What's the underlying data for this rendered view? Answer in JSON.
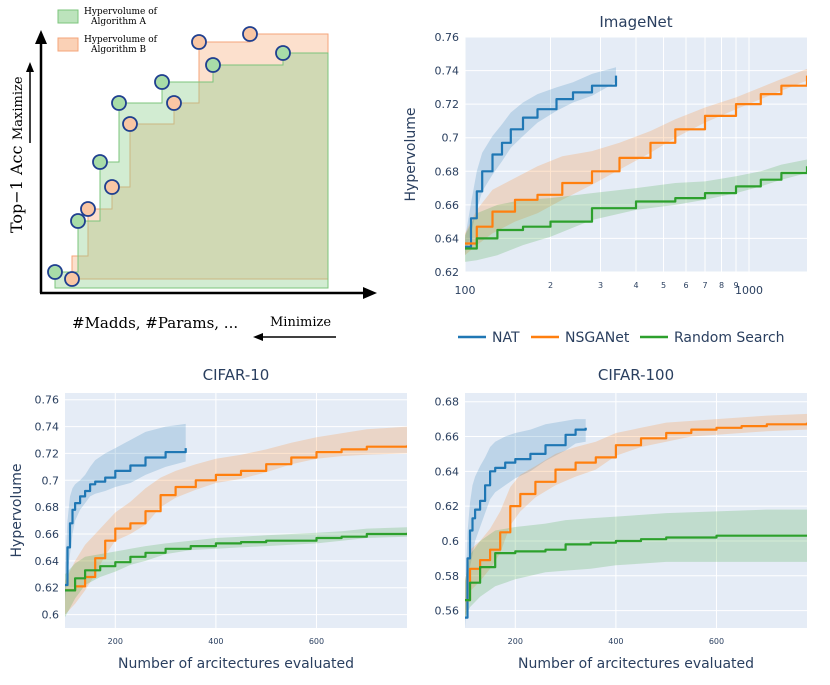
{
  "colors": {
    "nat": "#1f77b4",
    "nsga": "#ff7f0e",
    "random": "#2ca02c",
    "algA": "#8fd08f",
    "algB": "#f9c6a4",
    "grid": "#ffffff",
    "plotbg": "#e5ecf6"
  },
  "schematic": {
    "legend_a": [
      "Hypervolume of",
      "Algorithm A"
    ],
    "legend_b": [
      "Hypervolume of",
      "Algorithm B"
    ],
    "ylabel": "Top−1 Acc",
    "yarrow_label": "Maximize",
    "xlabel": "#Madds, #Params, ...",
    "xarrow_label": "Minimize"
  },
  "legend": {
    "items": [
      "NAT",
      "NSGANet",
      "Random Search"
    ]
  },
  "chart_data": [
    {
      "type": "line",
      "id": "imagenet",
      "title": "ImageNet",
      "xscale": "log",
      "xlabel": "",
      "ylabel": "Hypervolume",
      "xlim": [
        100,
        1600
      ],
      "ylim": [
        0.62,
        0.76
      ],
      "xticks": [
        100,
        200,
        300,
        400,
        500,
        600,
        700,
        800,
        900,
        1000
      ],
      "xticklabels": [
        "100",
        "2",
        "3",
        "4",
        "5",
        "6",
        "7",
        "8",
        "9",
        "1000"
      ],
      "yticks": [
        0.62,
        0.64,
        0.66,
        0.68,
        0.7,
        0.72,
        0.74,
        0.76
      ],
      "yticklabels": [
        "0.62",
        "0.64",
        "0.66",
        "0.68",
        "0.7",
        "0.72",
        "0.74",
        "0.76"
      ],
      "series": [
        {
          "name": "NAT",
          "x": [
            100,
            105,
            110,
            115,
            125,
            135,
            145,
            160,
            180,
            210,
            240,
            280,
            340
          ],
          "y": [
            0.635,
            0.652,
            0.668,
            0.68,
            0.69,
            0.697,
            0.705,
            0.712,
            0.717,
            0.723,
            0.727,
            0.731,
            0.737
          ],
          "lo": [
            0.63,
            0.643,
            0.657,
            0.668,
            0.678,
            0.686,
            0.694,
            0.701,
            0.709,
            0.716,
            0.721,
            0.725,
            0.733
          ],
          "hi": [
            0.64,
            0.661,
            0.68,
            0.691,
            0.701,
            0.708,
            0.715,
            0.721,
            0.726,
            0.73,
            0.733,
            0.738,
            0.742
          ]
        },
        {
          "name": "NSGANet",
          "x": [
            100,
            110,
            125,
            150,
            180,
            220,
            280,
            350,
            450,
            550,
            700,
            900,
            1100,
            1300,
            1600
          ],
          "y": [
            0.637,
            0.647,
            0.656,
            0.663,
            0.666,
            0.673,
            0.68,
            0.688,
            0.697,
            0.705,
            0.713,
            0.72,
            0.726,
            0.731,
            0.737
          ],
          "lo": [
            0.63,
            0.636,
            0.643,
            0.65,
            0.655,
            0.663,
            0.672,
            0.681,
            0.691,
            0.7,
            0.709,
            0.717,
            0.723,
            0.728,
            0.734
          ],
          "hi": [
            0.643,
            0.657,
            0.669,
            0.676,
            0.683,
            0.689,
            0.692,
            0.697,
            0.704,
            0.711,
            0.718,
            0.724,
            0.73,
            0.735,
            0.741
          ]
        },
        {
          "name": "Random Search",
          "x": [
            100,
            110,
            130,
            160,
            200,
            280,
            400,
            550,
            700,
            900,
            1100,
            1300,
            1600
          ],
          "y": [
            0.634,
            0.64,
            0.645,
            0.647,
            0.65,
            0.658,
            0.662,
            0.664,
            0.667,
            0.671,
            0.675,
            0.679,
            0.683
          ],
          "lo": [
            0.626,
            0.627,
            0.63,
            0.636,
            0.641,
            0.651,
            0.657,
            0.66,
            0.663,
            0.667,
            0.671,
            0.675,
            0.679
          ],
          "hi": [
            0.642,
            0.655,
            0.66,
            0.663,
            0.664,
            0.667,
            0.67,
            0.673,
            0.674,
            0.677,
            0.68,
            0.684,
            0.687
          ]
        }
      ]
    },
    {
      "type": "line",
      "id": "cifar10",
      "title": "CIFAR-10",
      "xscale": "linear",
      "xlabel": "Number of arcitectures evaluated",
      "ylabel": "Hypervolume",
      "xlim": [
        100,
        780
      ],
      "ylim": [
        0.59,
        0.765
      ],
      "xticks": [
        200,
        400,
        600
      ],
      "xticklabels": [
        "200",
        "400",
        "600"
      ],
      "yticks": [
        0.6,
        0.62,
        0.64,
        0.66,
        0.68,
        0.7,
        0.72,
        0.74,
        0.76
      ],
      "yticklabels": [
        "0.6",
        "0.62",
        "0.64",
        "0.66",
        "0.68",
        "0.7",
        "0.72",
        "0.74",
        "0.76"
      ],
      "series": [
        {
          "name": "NAT",
          "x": [
            100,
            105,
            110,
            115,
            120,
            130,
            140,
            150,
            160,
            180,
            200,
            230,
            260,
            300,
            340
          ],
          "y": [
            0.622,
            0.65,
            0.668,
            0.678,
            0.683,
            0.688,
            0.692,
            0.697,
            0.699,
            0.702,
            0.707,
            0.711,
            0.717,
            0.721,
            0.724
          ],
          "lo": [
            0.61,
            0.63,
            0.645,
            0.66,
            0.67,
            0.678,
            0.683,
            0.688,
            0.69,
            0.692,
            0.695,
            0.698,
            0.704,
            0.71,
            0.714
          ],
          "hi": [
            0.635,
            0.67,
            0.688,
            0.694,
            0.697,
            0.7,
            0.704,
            0.71,
            0.715,
            0.72,
            0.724,
            0.73,
            0.736,
            0.74,
            0.742
          ]
        },
        {
          "name": "NSGANet",
          "x": [
            100,
            120,
            140,
            160,
            180,
            200,
            230,
            260,
            290,
            320,
            360,
            400,
            450,
            500,
            550,
            600,
            650,
            700,
            780
          ],
          "y": [
            0.618,
            0.621,
            0.628,
            0.642,
            0.655,
            0.664,
            0.668,
            0.677,
            0.689,
            0.695,
            0.7,
            0.704,
            0.707,
            0.712,
            0.717,
            0.721,
            0.723,
            0.725,
            0.726
          ],
          "lo": [
            0.6,
            0.608,
            0.618,
            0.63,
            0.644,
            0.655,
            0.66,
            0.667,
            0.68,
            0.687,
            0.693,
            0.698,
            0.701,
            0.706,
            0.712,
            0.716,
            0.718,
            0.719,
            0.72
          ],
          "hi": [
            0.625,
            0.64,
            0.652,
            0.66,
            0.668,
            0.676,
            0.684,
            0.694,
            0.702,
            0.707,
            0.712,
            0.716,
            0.719,
            0.723,
            0.728,
            0.732,
            0.735,
            0.738,
            0.74
          ]
        },
        {
          "name": "Random Search",
          "x": [
            100,
            120,
            140,
            170,
            200,
            230,
            260,
            300,
            350,
            400,
            450,
            500,
            600,
            650,
            700,
            780
          ],
          "y": [
            0.618,
            0.627,
            0.633,
            0.636,
            0.639,
            0.643,
            0.646,
            0.649,
            0.651,
            0.653,
            0.654,
            0.655,
            0.657,
            0.658,
            0.66,
            0.661
          ],
          "lo": [
            0.598,
            0.612,
            0.622,
            0.628,
            0.632,
            0.637,
            0.64,
            0.645,
            0.648,
            0.649,
            0.65,
            0.651,
            0.653,
            0.655,
            0.657,
            0.658
          ],
          "hi": [
            0.63,
            0.638,
            0.643,
            0.645,
            0.647,
            0.649,
            0.651,
            0.653,
            0.655,
            0.657,
            0.658,
            0.659,
            0.661,
            0.662,
            0.664,
            0.665
          ]
        }
      ]
    },
    {
      "type": "line",
      "id": "cifar100",
      "title": "CIFAR-100",
      "xscale": "linear",
      "xlabel": "Number of arcitectures evaluated",
      "ylabel": "",
      "xlim": [
        100,
        780
      ],
      "ylim": [
        0.55,
        0.685
      ],
      "xticks": [
        200,
        400,
        600
      ],
      "xticklabels": [
        "200",
        "400",
        "600"
      ],
      "yticks": [
        0.56,
        0.58,
        0.6,
        0.62,
        0.64,
        0.66,
        0.68
      ],
      "yticklabels": [
        "0.56",
        "0.58",
        "0.6",
        "0.62",
        "0.64",
        "0.66",
        "0.68"
      ],
      "series": [
        {
          "name": "NAT",
          "x": [
            100,
            105,
            110,
            115,
            120,
            130,
            140,
            150,
            160,
            180,
            200,
            230,
            260,
            300,
            320,
            340
          ],
          "y": [
            0.556,
            0.59,
            0.606,
            0.613,
            0.618,
            0.623,
            0.632,
            0.64,
            0.642,
            0.645,
            0.647,
            0.65,
            0.655,
            0.661,
            0.664,
            0.665
          ],
          "lo": [
            0.55,
            0.572,
            0.585,
            0.592,
            0.6,
            0.608,
            0.616,
            0.624,
            0.628,
            0.632,
            0.636,
            0.64,
            0.646,
            0.652,
            0.656,
            0.657
          ],
          "hi": [
            0.565,
            0.605,
            0.622,
            0.632,
            0.637,
            0.643,
            0.648,
            0.654,
            0.657,
            0.66,
            0.662,
            0.664,
            0.667,
            0.669,
            0.67,
            0.67
          ]
        },
        {
          "name": "NSGANet",
          "x": [
            100,
            110,
            130,
            150,
            170,
            190,
            210,
            240,
            280,
            320,
            360,
            400,
            450,
            500,
            550,
            600,
            650,
            700,
            780
          ],
          "y": [
            0.566,
            0.584,
            0.589,
            0.595,
            0.605,
            0.62,
            0.627,
            0.634,
            0.641,
            0.645,
            0.648,
            0.655,
            0.659,
            0.662,
            0.664,
            0.665,
            0.666,
            0.667,
            0.668
          ],
          "lo": [
            0.555,
            0.571,
            0.577,
            0.584,
            0.593,
            0.609,
            0.617,
            0.625,
            0.632,
            0.637,
            0.641,
            0.649,
            0.654,
            0.657,
            0.66,
            0.661,
            0.662,
            0.663,
            0.664
          ],
          "hi": [
            0.577,
            0.595,
            0.6,
            0.607,
            0.617,
            0.631,
            0.638,
            0.643,
            0.65,
            0.654,
            0.657,
            0.662,
            0.665,
            0.668,
            0.669,
            0.67,
            0.671,
            0.672,
            0.673
          ]
        },
        {
          "name": "Random Search",
          "x": [
            100,
            110,
            130,
            160,
            200,
            260,
            300,
            350,
            400,
            450,
            500,
            600,
            700,
            780
          ],
          "y": [
            0.566,
            0.576,
            0.585,
            0.593,
            0.594,
            0.595,
            0.598,
            0.599,
            0.6,
            0.601,
            0.602,
            0.603,
            0.603,
            0.603
          ],
          "lo": [
            0.556,
            0.562,
            0.568,
            0.574,
            0.578,
            0.582,
            0.583,
            0.584,
            0.586,
            0.587,
            0.588,
            0.588,
            0.588,
            0.588
          ],
          "hi": [
            0.577,
            0.592,
            0.6,
            0.606,
            0.608,
            0.61,
            0.612,
            0.613,
            0.614,
            0.615,
            0.616,
            0.617,
            0.618,
            0.618
          ]
        }
      ]
    }
  ]
}
